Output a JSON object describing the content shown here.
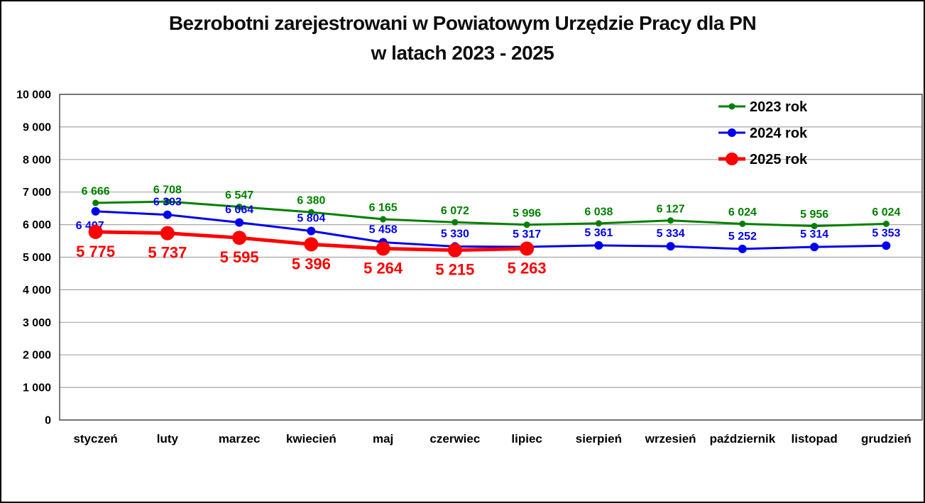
{
  "title": {
    "line1": "Bezrobotni zarejestrowani w Powiatowym Urzędzie Pracy dla PN",
    "line2": "w latach 2023 - 2025"
  },
  "chart_data": {
    "type": "line",
    "categories": [
      "styczeń",
      "luty",
      "marzec",
      "kwiecień",
      "maj",
      "czerwiec",
      "lipiec",
      "sierpień",
      "wrzesień",
      "październik",
      "listopad",
      "grudzień"
    ],
    "series": [
      {
        "name": "2023 rok",
        "color": "#008000",
        "values": [
          6666,
          6708,
          6547,
          6380,
          6165,
          6072,
          5996,
          6038,
          6127,
          6024,
          5956,
          6024
        ],
        "marker_radius": 4.5,
        "line_width": 3,
        "label_size": 16,
        "label_position": "above",
        "label_overrides": {}
      },
      {
        "name": "2024 rok",
        "color": "#0000EE",
        "values": [
          6407,
          6303,
          6064,
          5804,
          5458,
          5330,
          5317,
          5361,
          5334,
          5252,
          5314,
          5353
        ],
        "marker_radius": 6,
        "line_width": 3,
        "label_size": 16,
        "label_position": "above",
        "label_overrides": {
          "0": "below"
        }
      },
      {
        "name": "2025 rok",
        "color": "#FF0000",
        "values": [
          5775,
          5737,
          5595,
          5396,
          5264,
          5215,
          5263
        ],
        "marker_radius": 10,
        "line_width": 5,
        "label_size": 22,
        "label_position": "below",
        "label_overrides": {}
      }
    ],
    "ylim": [
      0,
      10000
    ],
    "ytick_step": 1000,
    "ytick_labels": [
      "0",
      "1 000",
      "2 000",
      "3 000",
      "4 000",
      "5 000",
      "6 000",
      "7 000",
      "8 000",
      "9 000",
      "10 000"
    ],
    "xlabel": "",
    "ylabel": "",
    "grid": true,
    "legend": {
      "position": "top-right",
      "entries": [
        "2023 rok",
        "2024 rok",
        "2025 rok"
      ]
    },
    "number_format": "space-thousands",
    "colors": {
      "frame": "#595959",
      "gridline": "#A6A6A6",
      "axis_text": "#000000",
      "title_text": "#0d0d0d"
    }
  }
}
